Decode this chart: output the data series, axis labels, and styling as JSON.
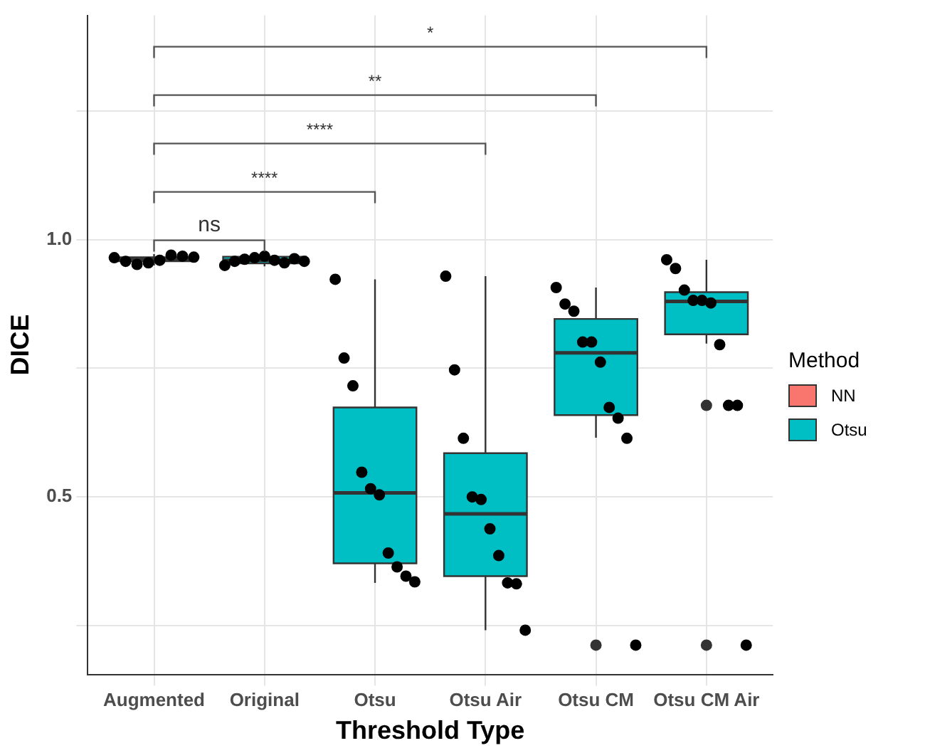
{
  "chart_data": {
    "type": "box",
    "xlabel": "Threshold Type",
    "ylabel": "DICE",
    "legend_title": "Method",
    "legend": "right",
    "grid": true,
    "categories": [
      "Augmented",
      "Original",
      "Otsu",
      "Otsu Air",
      "Otsu CM",
      "Otsu CM Air"
    ],
    "ylim": [
      0.155,
      1.436
    ],
    "yticks": [
      {
        "value": 0.25,
        "label": null
      },
      {
        "value": 0.5,
        "label": "0.5"
      },
      {
        "value": 0.75,
        "label": null
      },
      {
        "value": 1,
        "label": "1.0"
      },
      {
        "value": 1.25,
        "label": null
      }
    ],
    "series": [
      {
        "name": "NN",
        "color": "#f8766d",
        "boxes": [
          {
            "low": 0.95,
            "q1": 0.958,
            "median": 0.962,
            "q3": 0.966,
            "high": 0.972
          },
          null,
          null,
          null,
          null,
          null
        ]
      },
      {
        "name": "Otsu",
        "color": "#00bfc4",
        "boxes": [
          null,
          {
            "low": 0.948,
            "q1": 0.954,
            "median": 0.96,
            "q3": 0.967,
            "high": 0.972
          },
          {
            "low": 0.333,
            "q1": 0.371,
            "median": 0.508,
            "q3": 0.674,
            "high": 0.923
          },
          {
            "low": 0.241,
            "q1": 0.346,
            "median": 0.467,
            "q3": 0.585,
            "high": 0.929
          },
          {
            "low": 0.615,
            "q1": 0.659,
            "median": 0.78,
            "q3": 0.846,
            "high": 0.907,
            "outliers": [
              0.212
            ]
          },
          {
            "low": 0.798,
            "q1": 0.816,
            "median": 0.88,
            "q3": 0.898,
            "high": 0.961,
            "outliers": [
              0.678,
              0.212
            ]
          }
        ]
      },
      {
        "type": "scatter",
        "color": "#000000",
        "x": [
          "Augmented",
          "Augmented",
          "Augmented",
          "Augmented",
          "Augmented",
          "Augmented",
          "Augmented",
          "Augmented",
          "Original",
          "Original",
          "Original",
          "Original",
          "Original",
          "Original",
          "Original",
          "Original",
          "Original",
          "Otsu",
          "Otsu",
          "Otsu",
          "Otsu",
          "Otsu",
          "Otsu",
          "Otsu",
          "Otsu",
          "Otsu",
          "Otsu",
          "Otsu Air",
          "Otsu Air",
          "Otsu Air",
          "Otsu Air",
          "Otsu Air",
          "Otsu Air",
          "Otsu Air",
          "Otsu Air",
          "Otsu Air",
          "Otsu Air",
          "Otsu CM",
          "Otsu CM",
          "Otsu CM",
          "Otsu CM",
          "Otsu CM",
          "Otsu CM",
          "Otsu CM",
          "Otsu CM",
          "Otsu CM",
          "Otsu CM",
          "Otsu CM Air",
          "Otsu CM Air",
          "Otsu CM Air",
          "Otsu CM Air",
          "Otsu CM Air",
          "Otsu CM Air",
          "Otsu CM Air",
          "Otsu CM Air",
          "Otsu CM Air",
          "Otsu CM Air"
        ],
        "values": [
          0.965,
          0.958,
          0.952,
          0.955,
          0.96,
          0.97,
          0.968,
          0.966,
          0.95,
          0.958,
          0.962,
          0.965,
          0.968,
          0.96,
          0.955,
          0.963,
          0.958,
          0.923,
          0.77,
          0.716,
          0.548,
          0.516,
          0.504,
          0.391,
          0.364,
          0.346,
          0.335,
          0.929,
          0.747,
          0.614,
          0.5,
          0.495,
          0.438,
          0.386,
          0.333,
          0.331,
          0.241,
          0.907,
          0.875,
          0.861,
          0.801,
          0.801,
          0.762,
          0.674,
          0.653,
          0.614,
          0.212,
          0.961,
          0.944,
          0.902,
          0.882,
          0.882,
          0.877,
          0.796,
          0.678,
          0.678,
          0.212
        ]
      }
    ],
    "annotations": [
      "ns",
      "****",
      "****",
      "**",
      "*"
    ]
  }
}
